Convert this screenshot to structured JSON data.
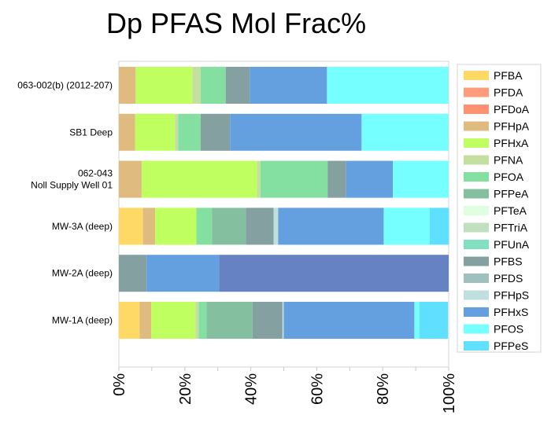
{
  "chart_data": {
    "type": "bar",
    "orientation": "horizontal",
    "stacked": true,
    "title": "Dp PFAS Mol Frac%",
    "xlabel": "",
    "ylabel": "",
    "xlim": [
      0,
      100
    ],
    "x_ticks": [
      "0%",
      "20%",
      "40%",
      "60%",
      "80%",
      "100%"
    ],
    "legend_position": "right",
    "categories": [
      [
        "063-002(b) (2012-207)"
      ],
      [
        "SB1 Deep"
      ],
      [
        "062-043",
        "Noll Supply Well 01"
      ],
      [
        "MW-3A (deep)"
      ],
      [
        "MW-2A (deep)"
      ],
      [
        "MW-1A (deep)"
      ]
    ],
    "series": [
      {
        "name": "PFBA",
        "color": "#ffd966",
        "values": [
          0,
          0,
          0,
          7.3,
          0,
          6.3
        ]
      },
      {
        "name": "PFDA",
        "color": "#ff9c7c",
        "values": [
          0,
          0,
          0,
          0,
          0,
          0
        ]
      },
      {
        "name": "PFDoA",
        "color": "#ff9072",
        "values": [
          0,
          0,
          0,
          0,
          0,
          0
        ]
      },
      {
        "name": "PFHpA",
        "color": "#dfbb80",
        "values": [
          5.1,
          4.9,
          6.9,
          3.7,
          0,
          3.5
        ]
      },
      {
        "name": "PFHxA",
        "color": "#c0ff60",
        "values": [
          17.2,
          12.1,
          35.0,
          12.5,
          0,
          13.4
        ]
      },
      {
        "name": "PFNA",
        "color": "#c4dfa0",
        "values": [
          2.5,
          1.0,
          1.0,
          0,
          0,
          1.0
        ]
      },
      {
        "name": "PFOA",
        "color": "#84e0a0",
        "values": [
          7.6,
          6.8,
          20.4,
          4.7,
          0,
          2.4
        ]
      },
      {
        "name": "PFPeA",
        "color": "#84c0a0",
        "values": [
          0,
          0,
          0,
          10.3,
          0,
          13.9
        ]
      },
      {
        "name": "PFTeA",
        "color": "#e0ffe0",
        "values": [
          0,
          0,
          0,
          0,
          0,
          0
        ]
      },
      {
        "name": "PFTriA",
        "color": "#c0e0c0",
        "values": [
          0,
          0,
          0,
          0,
          0,
          0
        ]
      },
      {
        "name": "PFUnA",
        "color": "#80e0c0",
        "values": [
          0,
          0,
          0,
          0,
          0,
          0
        ]
      },
      {
        "name": "PFBS",
        "color": "#84a0a0",
        "values": [
          7.3,
          8.9,
          5.6,
          8.4,
          8.4,
          9.1
        ]
      },
      {
        "name": "PFDS",
        "color": "#a0c0c0",
        "values": [
          0,
          0,
          0,
          0,
          0,
          0
        ]
      },
      {
        "name": "PFHpS",
        "color": "#c0e0e0",
        "values": [
          0,
          0,
          0,
          1.4,
          0,
          0.4
        ]
      },
      {
        "name": "PFHxS",
        "color": "#64a0e0",
        "values": [
          23.4,
          39.9,
          14.2,
          32.0,
          22.0,
          39.6
        ]
      },
      {
        "name": "PFOS",
        "color": "#76ffff",
        "values": [
          36.8,
          26.3,
          16.9,
          13.9,
          0,
          1.5
        ]
      },
      {
        "name": "PFPeS",
        "color": "#60e0ff",
        "values": [
          0,
          0,
          0,
          5.9,
          0,
          8.7
        ]
      },
      {
        "name": null,
        "legend": false,
        "color": "#6682c2",
        "values": [
          0,
          0,
          0,
          0,
          69.6,
          0
        ]
      }
    ]
  }
}
